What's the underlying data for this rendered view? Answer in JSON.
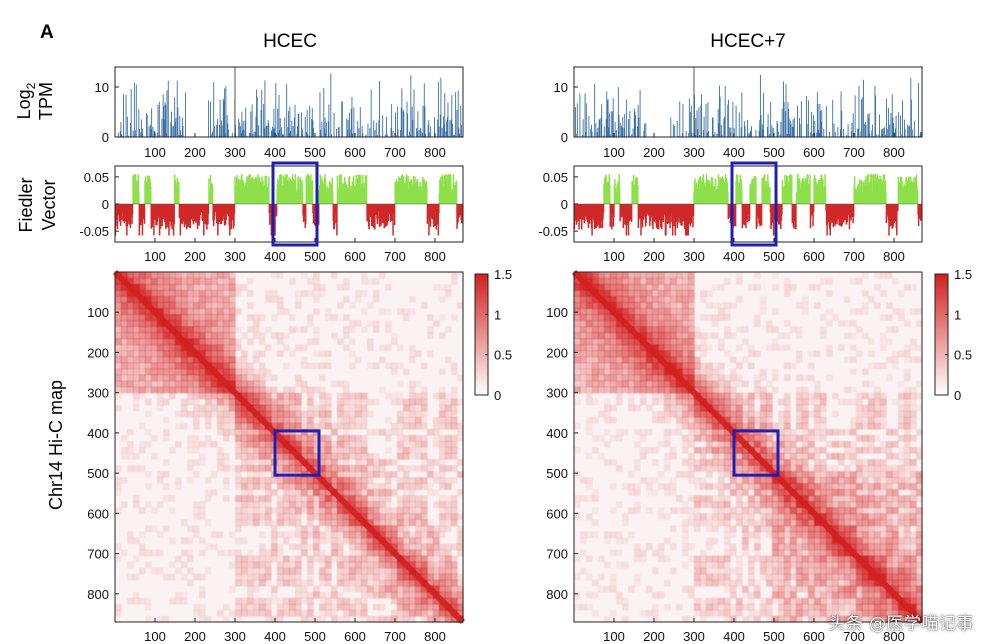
{
  "panel_label": "A",
  "row_labels": {
    "expr_line1": "Log",
    "expr_sub": "2",
    "expr_line2": "TPM",
    "fiedler_line1": "Fiedler",
    "fiedler_line2": "Vector",
    "hic": "Chr14 Hi-C map"
  },
  "watermark": "头条 @医学喵记事",
  "colors": {
    "expression": "#3a6fa8",
    "fiedler_pos": "#8ee04a",
    "fiedler_neg": "#d02828",
    "heat_max": "#d21f1f",
    "highlight_box": "#1f1fb4"
  },
  "chart_data": [
    {
      "type": "bar",
      "panel": "HCEC expression",
      "title": "HCEC",
      "ylabel": "Log2 TPM",
      "ylim": [
        0,
        14
      ],
      "yticks": [
        "0",
        "10"
      ],
      "xticks": [
        "100",
        "200",
        "300",
        "400",
        "500",
        "600",
        "700",
        "800"
      ],
      "xlim": [
        0,
        870
      ],
      "gap_range": [
        180,
        232
      ],
      "marker_line": 300
    },
    {
      "type": "area",
      "panel": "HCEC Fiedler vector",
      "ylabel": "Fiedler Vector",
      "ylim": [
        -0.07,
        0.07
      ],
      "yticks": [
        "0.05",
        "0",
        "-0.05"
      ],
      "xticks": [
        "100",
        "200",
        "300",
        "400",
        "500",
        "600",
        "700",
        "800"
      ],
      "xlim": [
        0,
        870
      ],
      "positive_segments": [
        [
          45,
          60
        ],
        [
          75,
          90
        ],
        [
          148,
          160
        ],
        [
          245,
          235
        ],
        [
          300,
          385
        ],
        [
          405,
          470
        ],
        [
          478,
          495
        ],
        [
          510,
          545
        ],
        [
          555,
          590
        ],
        [
          590,
          630
        ],
        [
          700,
          780
        ],
        [
          810,
          855
        ]
      ],
      "highlight": [
        400,
        500
      ]
    },
    {
      "type": "heatmap",
      "panel": "HCEC Hi-C",
      "ylabel": "Chr14 Hi-C map",
      "xticks": [
        "100",
        "200",
        "300",
        "400",
        "500",
        "600",
        "700",
        "800"
      ],
      "yticks": [
        "100",
        "200",
        "300",
        "400",
        "500",
        "600",
        "700",
        "800"
      ],
      "range": [
        0,
        870
      ],
      "colorbar": {
        "ticks": [
          "1.5",
          "1",
          "0.5",
          "0"
        ],
        "min": 0,
        "max": 1.5
      },
      "highlight": [
        400,
        500
      ]
    },
    {
      "type": "bar",
      "panel": "HCEC+7 expression",
      "title": "HCEC+7",
      "ylabel": "Log2 TPM",
      "ylim": [
        0,
        14
      ],
      "yticks": [
        "0",
        "10"
      ],
      "xticks": [
        "100",
        "200",
        "300",
        "400",
        "500",
        "600",
        "700",
        "800"
      ],
      "xlim": [
        0,
        870
      ],
      "gap_range": [
        180,
        232
      ],
      "marker_line": 300
    },
    {
      "type": "area",
      "panel": "HCEC+7 Fiedler vector",
      "ylabel": "Fiedler Vector",
      "ylim": [
        -0.07,
        0.07
      ],
      "yticks": [
        "0.05",
        "0",
        "-0.05"
      ],
      "xticks": [
        "100",
        "200",
        "300",
        "400",
        "500",
        "600",
        "700",
        "800"
      ],
      "xlim": [
        0,
        870
      ],
      "positive_segments": [
        [
          75,
          90
        ],
        [
          100,
          115
        ],
        [
          145,
          160
        ],
        [
          300,
          385
        ],
        [
          405,
          420
        ],
        [
          440,
          455
        ],
        [
          470,
          490
        ],
        [
          520,
          545
        ],
        [
          555,
          590
        ],
        [
          600,
          630
        ],
        [
          700,
          780
        ],
        [
          810,
          860
        ]
      ],
      "highlight": [
        400,
        500
      ]
    },
    {
      "type": "heatmap",
      "panel": "HCEC+7 Hi-C",
      "xticks": [
        "100",
        "200",
        "300",
        "400",
        "500",
        "600",
        "700",
        "800"
      ],
      "yticks": [
        "100",
        "200",
        "300",
        "400",
        "500",
        "600",
        "700",
        "800"
      ],
      "range": [
        0,
        870
      ],
      "colorbar": {
        "ticks": [
          "1.5",
          "1",
          "0.5",
          "0"
        ],
        "min": 0,
        "max": 1.5
      },
      "highlight": [
        400,
        500
      ]
    }
  ]
}
